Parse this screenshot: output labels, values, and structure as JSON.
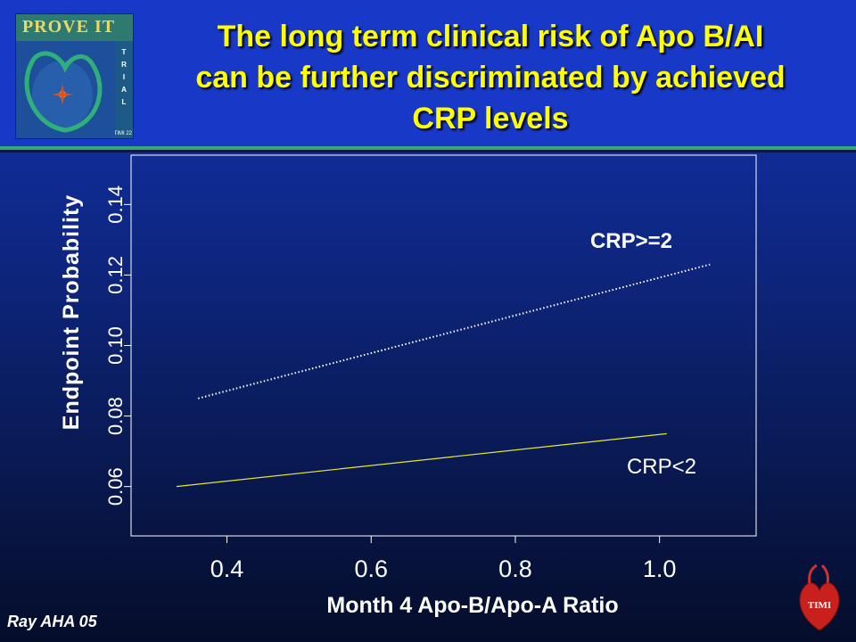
{
  "header": {
    "title_lines": [
      "The long term clinical risk of Apo B/AI",
      "can be further discriminated by achieved",
      "CRP levels"
    ]
  },
  "logo": {
    "banner_text": "PROVE IT",
    "side_letters": [
      "T",
      "R",
      "I",
      "A",
      "L"
    ],
    "sub_text": "TIMI 22"
  },
  "footer": {
    "credit": "Ray AHA 05",
    "corner_logo_text": "TIMI"
  },
  "chart_data": {
    "type": "line",
    "xlabel": "Month 4 Apo-B/Apo-A Ratio",
    "ylabel": "Endpoint Probability",
    "x_ticks": [
      0.4,
      0.6,
      0.8,
      1.0
    ],
    "x_tick_labels": [
      "0.4",
      "0.6",
      "0.8",
      "1.0"
    ],
    "y_ticks": [
      0.06,
      0.08,
      0.1,
      0.12,
      0.14
    ],
    "y_tick_labels": [
      "0.06",
      "0.08",
      "0.10",
      "0.12",
      "0.14"
    ],
    "xlim": [
      0.267,
      1.134
    ],
    "ylim": [
      0.046,
      0.154
    ],
    "grid": false,
    "series": [
      {
        "name": "CRP>=2",
        "style": "dotted",
        "color": "#ffffff",
        "x": [
          0.36,
          1.07
        ],
        "y": [
          0.085,
          0.123
        ]
      },
      {
        "name": "CRP<2",
        "style": "solid",
        "color": "#e8e830",
        "x": [
          0.33,
          1.01
        ],
        "y": [
          0.06,
          0.075
        ]
      }
    ]
  }
}
